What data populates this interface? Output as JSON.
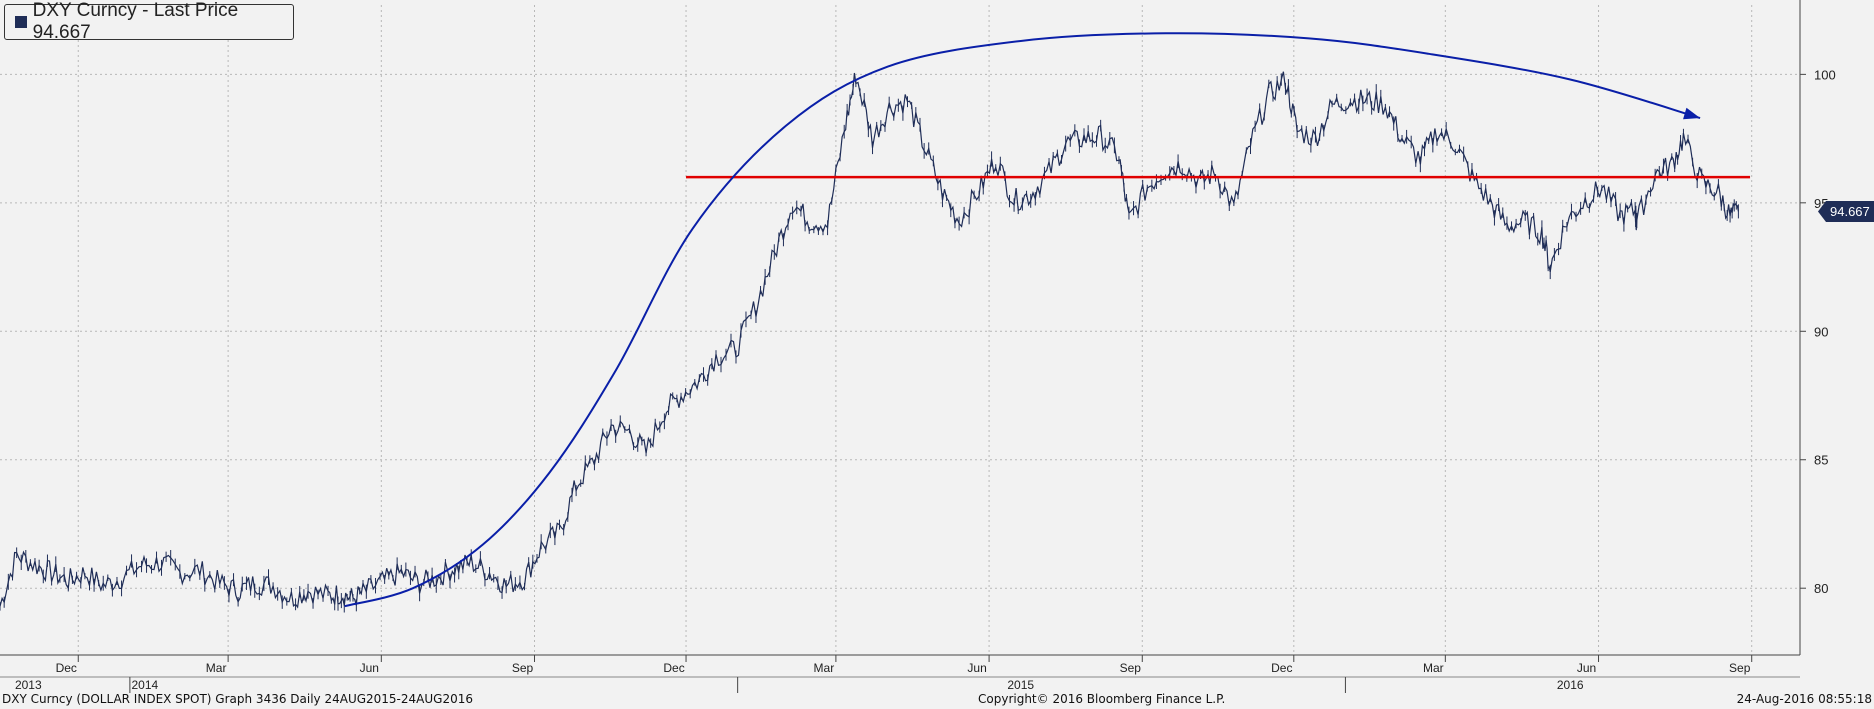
{
  "legend": {
    "label": "DXY Curncy - Last Price 94.667"
  },
  "last_price_badge": "94.667",
  "footer": {
    "left": "DXY Curncy (DOLLAR INDEX SPOT) Graph 3436  Daily 24AUG2015-24AUG2016",
    "center": "Copyright© 2016 Bloomberg Finance L.P.",
    "right": "24-Aug-2016 08:55:18"
  },
  "colors": {
    "background": "#f2f2f2",
    "series": "#1f2d57",
    "support_line": "#e00000",
    "trend_curve": "#0a1fa8",
    "grid": "#b8b8b8"
  },
  "chart_data": {
    "type": "line",
    "series": [
      {
        "name": "DXY Curncy - Last Price",
        "x": [
          "2013-10-15",
          "2013-10-25",
          "2013-11-05",
          "2013-11-15",
          "2013-11-25",
          "2013-12-05",
          "2013-12-16",
          "2013-12-27",
          "2014-01-08",
          "2014-01-20",
          "2014-01-31",
          "2014-02-12",
          "2014-02-24",
          "2014-03-07",
          "2014-03-17",
          "2014-03-28",
          "2014-04-08",
          "2014-04-18",
          "2014-04-30",
          "2014-05-08",
          "2014-05-15",
          "2014-05-23",
          "2014-06-03",
          "2014-06-13",
          "2014-06-24",
          "2014-07-04",
          "2014-07-15",
          "2014-07-25",
          "2014-08-05",
          "2014-08-15",
          "2014-08-26",
          "2014-09-05",
          "2014-09-16",
          "2014-09-26",
          "2014-10-07",
          "2014-10-17",
          "2014-10-28",
          "2014-11-07",
          "2014-11-18",
          "2014-11-28",
          "2014-12-09",
          "2014-12-19",
          "2014-12-31",
          "2015-01-12",
          "2015-01-23",
          "2015-02-03",
          "2015-02-13",
          "2015-02-24",
          "2015-03-06",
          "2015-03-13",
          "2015-03-23",
          "2015-04-02",
          "2015-04-13",
          "2015-04-23",
          "2015-05-04",
          "2015-05-14",
          "2015-05-26",
          "2015-06-05",
          "2015-06-16",
          "2015-06-26",
          "2015-07-07",
          "2015-07-17",
          "2015-07-28",
          "2015-08-07",
          "2015-08-18",
          "2015-08-24",
          "2015-09-04",
          "2015-09-15",
          "2015-09-25",
          "2015-10-06",
          "2015-10-15",
          "2015-10-26",
          "2015-11-05",
          "2015-11-16",
          "2015-11-26",
          "2015-12-03",
          "2015-12-14",
          "2015-12-24",
          "2016-01-04",
          "2016-01-14",
          "2016-01-25",
          "2016-02-04",
          "2016-02-15",
          "2016-02-25",
          "2016-03-07",
          "2016-03-17",
          "2016-03-28",
          "2016-04-07",
          "2016-04-18",
          "2016-04-28",
          "2016-05-03",
          "2016-05-13",
          "2016-05-24",
          "2016-06-03",
          "2016-06-14",
          "2016-06-23",
          "2016-06-24",
          "2016-07-05",
          "2016-07-15",
          "2016-07-22",
          "2016-08-02",
          "2016-08-12",
          "2016-08-19",
          "2016-08-24"
        ],
        "y": [
          79.3,
          81.3,
          80.9,
          80.6,
          80.3,
          80.6,
          80.1,
          80.4,
          80.9,
          81.0,
          80.6,
          80.7,
          80.2,
          79.9,
          80.2,
          80.1,
          79.6,
          79.9,
          79.7,
          79.8,
          79.6,
          79.9,
          80.3,
          80.6,
          80.2,
          80.4,
          80.8,
          81.0,
          80.6,
          80.1,
          80.4,
          81.6,
          82.2,
          84.0,
          85.0,
          86.3,
          86.1,
          85.3,
          86.9,
          87.5,
          88.1,
          89.0,
          89.3,
          91.0,
          93.0,
          95.0,
          94.3,
          94.2,
          97.8,
          100.0,
          97.5,
          98.7,
          99.0,
          97.2,
          95.4,
          94.3,
          95.5,
          96.7,
          95.1,
          95.3,
          96.2,
          97.3,
          97.5,
          97.6,
          96.8,
          94.3,
          95.6,
          96.3,
          96.5,
          95.8,
          96.2,
          94.8,
          97.3,
          99.2,
          99.8,
          97.8,
          97.5,
          98.8,
          99.0,
          99.0,
          98.8,
          97.5,
          96.7,
          97.8,
          97.3,
          96.0,
          95.0,
          94.1,
          94.3,
          93.8,
          92.5,
          94.3,
          95.1,
          95.6,
          94.5,
          94.7,
          94.3,
          96.1,
          96.5,
          97.5,
          95.8,
          95.4,
          94.5,
          94.667
        ]
      }
    ],
    "annotations": [
      {
        "type": "horizontal_line",
        "y": 96.0,
        "x_start": "2014-12-01",
        "x_end": "2016-08-31",
        "color": "#e00000"
      },
      {
        "type": "arrow_curve",
        "points": [
          [
            "2014-05-10",
            79.3
          ],
          [
            "2014-06-20",
            80.0
          ],
          [
            "2014-08-01",
            81.7
          ],
          [
            "2014-09-10",
            84.5
          ],
          [
            "2014-10-20",
            88.5
          ],
          [
            "2014-12-05",
            94.0
          ],
          [
            "2015-01-30",
            98.0
          ],
          [
            "2015-04-01",
            100.3
          ],
          [
            "2015-06-20",
            101.3
          ],
          [
            "2015-09-15",
            101.6
          ],
          [
            "2015-12-10",
            101.4
          ],
          [
            "2016-02-20",
            100.8
          ],
          [
            "2016-05-15",
            99.8
          ],
          [
            "2016-08-01",
            98.3
          ]
        ],
        "color": "#0a1fa8"
      }
    ],
    "ylim": [
      77.4,
      102.7
    ],
    "ytick_values": [
      80,
      85,
      90,
      95,
      100
    ],
    "ytick_labels": [
      "80",
      "85",
      "90",
      "95",
      "100"
    ],
    "x_range": [
      "2013-10-15",
      "2016-09-30"
    ],
    "x_month_ticks": [
      {
        "date": "2013-12-01",
        "label": "Dec"
      },
      {
        "date": "2014-03-01",
        "label": "Mar"
      },
      {
        "date": "2014-06-01",
        "label": "Jun"
      },
      {
        "date": "2014-09-01",
        "label": "Sep"
      },
      {
        "date": "2014-12-01",
        "label": "Dec"
      },
      {
        "date": "2015-03-01",
        "label": "Mar"
      },
      {
        "date": "2015-06-01",
        "label": "Jun"
      },
      {
        "date": "2015-09-01",
        "label": "Sep"
      },
      {
        "date": "2015-12-01",
        "label": "Dec"
      },
      {
        "date": "2016-03-01",
        "label": "Mar"
      },
      {
        "date": "2016-06-01",
        "label": "Jun"
      },
      {
        "date": "2016-09-01",
        "label": "Sep"
      }
    ],
    "x_year_labels": [
      {
        "date": "2013-11-01",
        "label": "2013"
      },
      {
        "date": "2015-06-20",
        "label": "2015"
      },
      {
        "date": "2016-05-15",
        "label": "2016"
      }
    ],
    "x_year_boundaries": [
      "2014-01-01",
      "2015-01-01",
      "2016-01-01"
    ],
    "x_year_label_2014": {
      "date": "2014-01-10",
      "label": "2014"
    },
    "grid": true,
    "legend_position": "top-left"
  }
}
